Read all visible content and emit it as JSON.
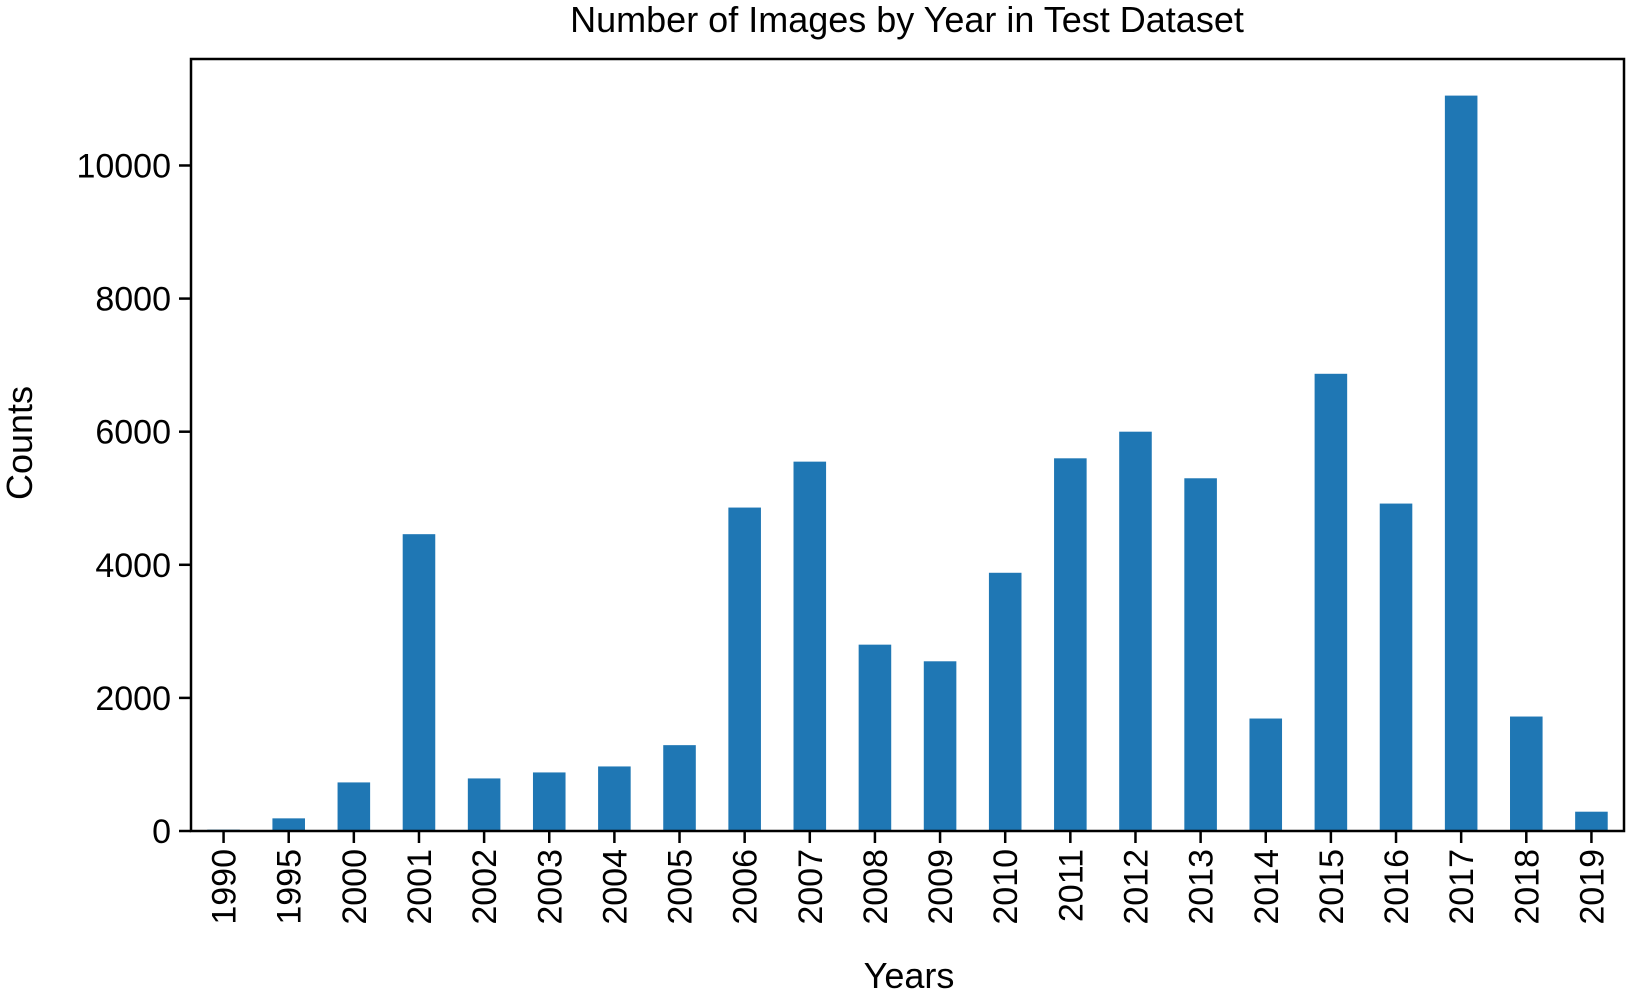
{
  "chart_data": {
    "type": "bar",
    "title": "Number of Images by Year in Test Dataset",
    "xlabel": "Years",
    "ylabel": "Counts",
    "categories": [
      "1990",
      "1995",
      "2000",
      "2001",
      "2002",
      "2003",
      "2004",
      "2005",
      "2006",
      "2007",
      "2008",
      "2009",
      "2010",
      "2011",
      "2012",
      "2013",
      "2014",
      "2015",
      "2016",
      "2017",
      "2018",
      "2019"
    ],
    "values": [
      20,
      190,
      730,
      4460,
      790,
      880,
      970,
      1290,
      4860,
      5550,
      2800,
      2550,
      3880,
      5600,
      6000,
      5300,
      1690,
      6870,
      4920,
      11050,
      1720,
      290
    ],
    "ylim": [
      0,
      11600
    ],
    "yticks": [
      0,
      2000,
      4000,
      6000,
      8000,
      10000
    ],
    "grid": false,
    "legend": "none",
    "bar_color": "#1f77b4"
  }
}
